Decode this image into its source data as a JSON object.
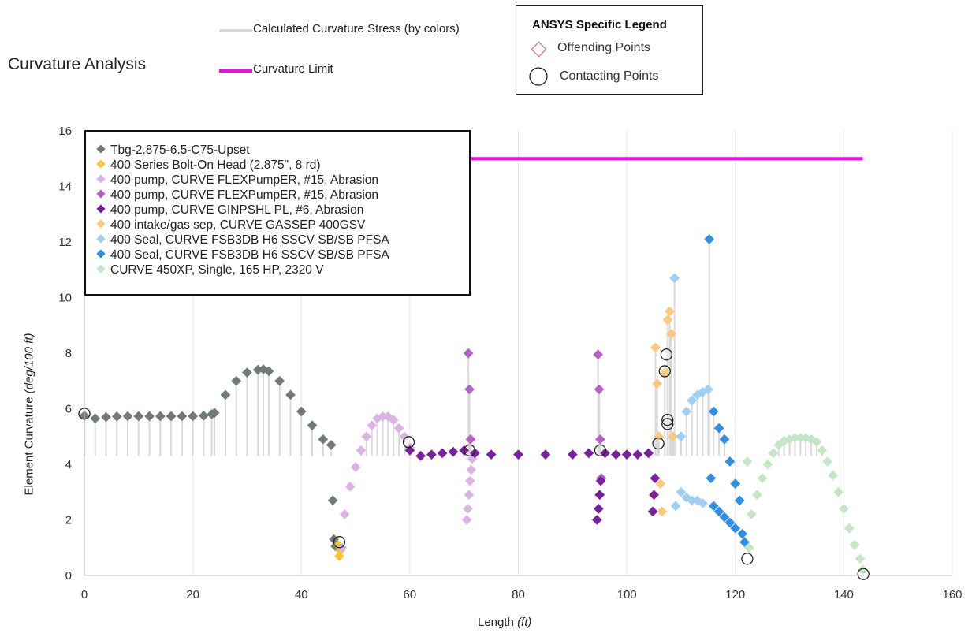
{
  "title": "Curvature Analysis",
  "top_legend": {
    "stress_label": "Calculated Curvature Stress (by colors)",
    "limit_label": "Curvature Limit"
  },
  "ansys_legend": {
    "title": "ANSYS Specific Legend",
    "offending_label": "Offending Points",
    "contacting_label": "Contacting Points"
  },
  "colors": {
    "limit": "#ff00ff",
    "stress": "#d9d9d9",
    "tubing": "#707a7a",
    "head": "#f4c830",
    "pump_light": "#dcb4e4",
    "pump_mid": "#b462c8",
    "pump_dark": "#7a1fa0",
    "intake": "#fbc97a",
    "seal_light": "#9fcff3",
    "seal_dark": "#2f8ee6",
    "motor": "#c6e6c6"
  },
  "chart_data": {
    "type": "scatter",
    "title": "Curvature Analysis",
    "xlabel": "Length",
    "xlabel_unit": "(ft)",
    "ylabel": "Element Curvature",
    "ylabel_unit": "(deg/100 ft)",
    "xlim": [
      0,
      160
    ],
    "ylim": [
      0,
      16
    ],
    "xticks": [
      0,
      20,
      40,
      60,
      80,
      100,
      120,
      140,
      160
    ],
    "yticks": [
      0,
      2,
      4,
      6,
      8,
      10,
      12,
      14,
      16
    ],
    "grid": "vertical",
    "curvature_limit": {
      "x": [
        70,
        143.5
      ],
      "y": [
        15,
        15
      ]
    },
    "series": [
      {
        "name": "Tbg-2.875-6.5-C75-Upset",
        "color": "#707a7a",
        "x": [
          0,
          2,
          4,
          6,
          8,
          10,
          12,
          14,
          16,
          18,
          20,
          22,
          23.5,
          24,
          26,
          28,
          30,
          32,
          33,
          34,
          36,
          38,
          40,
          42,
          44,
          45.5,
          45.8,
          46,
          46.3
        ],
        "y": [
          5.75,
          5.65,
          5.7,
          5.72,
          5.73,
          5.73,
          5.73,
          5.73,
          5.73,
          5.73,
          5.73,
          5.75,
          5.8,
          5.85,
          6.5,
          7.0,
          7.3,
          7.4,
          7.42,
          7.35,
          7.0,
          6.5,
          5.9,
          5.4,
          4.9,
          4.7,
          2.7,
          1.3,
          1.05
        ]
      },
      {
        "name": "400 Series Bolt-On Head (2.875\", 8 rd)",
        "color": "#f4c830",
        "x": [
          46.8,
          47.0,
          47.2
        ],
        "y": [
          1.1,
          0.7,
          0.9
        ]
      },
      {
        "name": "400 pump, CURVE FLEXPumpER, #15, Abrasion",
        "color": "#dcb4e4",
        "x": [
          47.5,
          48,
          49,
          50,
          51,
          52,
          53,
          54,
          55,
          56,
          57,
          58,
          59,
          60,
          70.5,
          70.7,
          70.9,
          71.1,
          71.3,
          71.5
        ],
        "y": [
          1.0,
          2.2,
          3.2,
          3.9,
          4.5,
          5.0,
          5.4,
          5.65,
          5.72,
          5.72,
          5.6,
          5.3,
          5.0,
          4.6,
          2.0,
          2.4,
          2.9,
          3.4,
          3.8,
          4.2
        ]
      },
      {
        "name": "400 pump, CURVE FLEXPumpER, #15, Abrasion",
        "color": "#b462c8",
        "x": [
          70.8,
          71.0,
          71.2,
          94.7,
          94.9,
          95.1,
          95.3
        ],
        "y": [
          8.0,
          6.7,
          4.9,
          7.95,
          6.7,
          4.9,
          3.5
        ]
      },
      {
        "name": "400 pump, CURVE GINPSHL PL, #6, Abrasion",
        "color": "#7a1fa0",
        "x": [
          60,
          62,
          64,
          66,
          68,
          70,
          72,
          75,
          80,
          85,
          90,
          93,
          94.5,
          94.8,
          95.0,
          95.2,
          96,
          98,
          100,
          102,
          104,
          104.8,
          105.0,
          105.2
        ],
        "y": [
          4.5,
          4.3,
          4.35,
          4.4,
          4.45,
          4.5,
          4.4,
          4.35,
          4.35,
          4.35,
          4.35,
          4.4,
          2.0,
          2.4,
          2.9,
          3.4,
          4.4,
          4.35,
          4.35,
          4.35,
          4.4,
          2.3,
          2.9,
          3.5
        ]
      },
      {
        "name": "400 intake/gas sep, CURVE GASSEP 400GSV",
        "color": "#fbc97a",
        "x": [
          105.3,
          105.6,
          105.9,
          106.2,
          106.5,
          107.0,
          107.5,
          107.9,
          108.2,
          108.5
        ],
        "y": [
          8.2,
          6.9,
          5.0,
          3.3,
          2.3,
          7.3,
          9.2,
          9.5,
          8.7,
          5.0
        ]
      },
      {
        "name": "400 Seal, CURVE FSB3DB H6 SSCV SB/SB PFSA",
        "color": "#9fcff3",
        "x": [
          108.8,
          109.0,
          110,
          111,
          112,
          113,
          114,
          115,
          110,
          111,
          112,
          113,
          114
        ],
        "y": [
          10.7,
          2.5,
          5.0,
          5.9,
          6.3,
          6.5,
          6.6,
          6.7,
          3.0,
          2.8,
          2.7,
          2.7,
          2.6
        ]
      },
      {
        "name": "400 Seal, CURVE FSB3DB H6 SSCV SB/SB PFSA",
        "color": "#2f8ee6",
        "x": [
          115.2,
          115.5,
          116,
          117,
          118,
          119,
          120,
          120.8,
          121.3,
          121.7,
          116,
          117,
          118,
          119,
          120
        ],
        "y": [
          12.1,
          3.5,
          5.9,
          5.3,
          4.9,
          4.1,
          3.3,
          2.7,
          1.5,
          1.2,
          2.5,
          2.3,
          2.1,
          1.9,
          1.7
        ]
      },
      {
        "name": "CURVE 450XP, Single, 165 HP, 2320 V",
        "color": "#c6e6c6",
        "x": [
          122.2,
          122.5,
          123,
          124,
          125,
          126,
          127,
          128,
          129,
          130,
          131,
          132,
          133,
          134,
          135,
          136,
          137,
          138,
          139,
          140,
          141,
          142,
          143,
          143.5
        ],
        "y": [
          4.1,
          1.0,
          2.2,
          2.9,
          3.5,
          4.0,
          4.4,
          4.7,
          4.85,
          4.9,
          4.95,
          4.95,
          4.95,
          4.9,
          4.8,
          4.5,
          4.1,
          3.6,
          3.0,
          2.4,
          1.7,
          1.1,
          0.6,
          0.2
        ]
      }
    ],
    "contacting_points": {
      "x": [
        0,
        47.0,
        59.8,
        71.0,
        95.1,
        105.8,
        107.0,
        107.3,
        107.5,
        107.5,
        122.2,
        143.6
      ],
      "y": [
        5.82,
        1.2,
        4.8,
        4.5,
        4.5,
        4.75,
        7.35,
        7.95,
        5.45,
        5.6,
        0.6,
        0.05
      ]
    }
  }
}
